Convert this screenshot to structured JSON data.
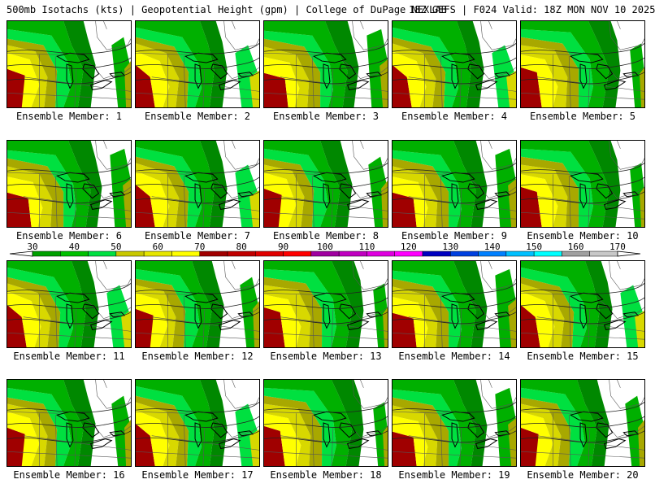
{
  "header": {
    "left": "500mb Isotachs (kts) | Geopotential Height (gpm) | College of DuPage NEXLAB",
    "right": "18Z GEFS | F024 Valid: 18Z MON NOV 10 2025"
  },
  "members": [
    {
      "label": "Ensemble Member: 1",
      "variant": 0
    },
    {
      "label": "Ensemble Member: 2",
      "variant": 1
    },
    {
      "label": "Ensemble Member: 3",
      "variant": 2
    },
    {
      "label": "Ensemble Member: 4",
      "variant": 1
    },
    {
      "label": "Ensemble Member: 5",
      "variant": 3
    },
    {
      "label": "Ensemble Member: 6",
      "variant": 2
    },
    {
      "label": "Ensemble Member: 7",
      "variant": 1
    },
    {
      "label": "Ensemble Member: 8",
      "variant": 0
    },
    {
      "label": "Ensemble Member: 9",
      "variant": 2
    },
    {
      "label": "Ensemble Member: 10",
      "variant": 3
    },
    {
      "label": "Ensemble Member: 11",
      "variant": 1
    },
    {
      "label": "Ensemble Member: 12",
      "variant": 0
    },
    {
      "label": "Ensemble Member: 13",
      "variant": 3
    },
    {
      "label": "Ensemble Member: 14",
      "variant": 2
    },
    {
      "label": "Ensemble Member: 15",
      "variant": 1
    },
    {
      "label": "Ensemble Member: 16",
      "variant": 0
    },
    {
      "label": "Ensemble Member: 17",
      "variant": 1
    },
    {
      "label": "Ensemble Member: 18",
      "variant": 3
    },
    {
      "label": "Ensemble Member: 19",
      "variant": 2
    },
    {
      "label": "Ensemble Member: 20",
      "variant": 0
    }
  ],
  "colorbar": {
    "ticks": [
      "30",
      "40",
      "50",
      "60",
      "70",
      "80",
      "90",
      "100",
      "110",
      "120",
      "130",
      "140",
      "150",
      "160",
      "170"
    ],
    "colors": [
      "#00a000",
      "#00c000",
      "#00e040",
      "#c8c800",
      "#e6e600",
      "#ffff00",
      "#a00000",
      "#c00000",
      "#e00000",
      "#ff0000",
      "#a000a0",
      "#c000c0",
      "#e000e0",
      "#ff00ff",
      "#0000c0",
      "#0040e0",
      "#0080ff",
      "#00c0ff",
      "#00ffff",
      "#a0a0a0",
      "#c8c8c8"
    ]
  },
  "legend": {
    "wind_colors": {
      "w30": "#008800",
      "w40": "#00b000",
      "w50": "#00e040",
      "w60": "#a8a800",
      "w70": "#d8d800",
      "w80": "#ffff00",
      "w90": "#a00000"
    }
  }
}
